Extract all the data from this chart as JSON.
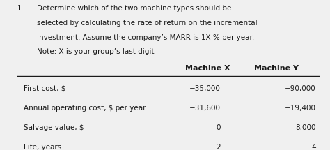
{
  "background_color": "#f0f0f0",
  "question_number": "1.",
  "question_text_lines": [
    "Determine which of the two machine types should be",
    "selected by calculating the rate of return on the incremental",
    "investment. Assume the company’s MARR is 1X % per year.",
    "Note: X is your group’s last digit"
  ],
  "col_headers": [
    "Machine X",
    "Machine Y"
  ],
  "row_labels": [
    "First cost, $",
    "Annual operating cost, $ per year",
    "Salvage value, $",
    "Life, years"
  ],
  "machine_x_values": [
    "−35,000",
    "−31,600",
    "0",
    "2"
  ],
  "machine_y_values": [
    "−90,000",
    "−19,400",
    "8,000",
    "4"
  ],
  "text_color": "#1a1a1a"
}
